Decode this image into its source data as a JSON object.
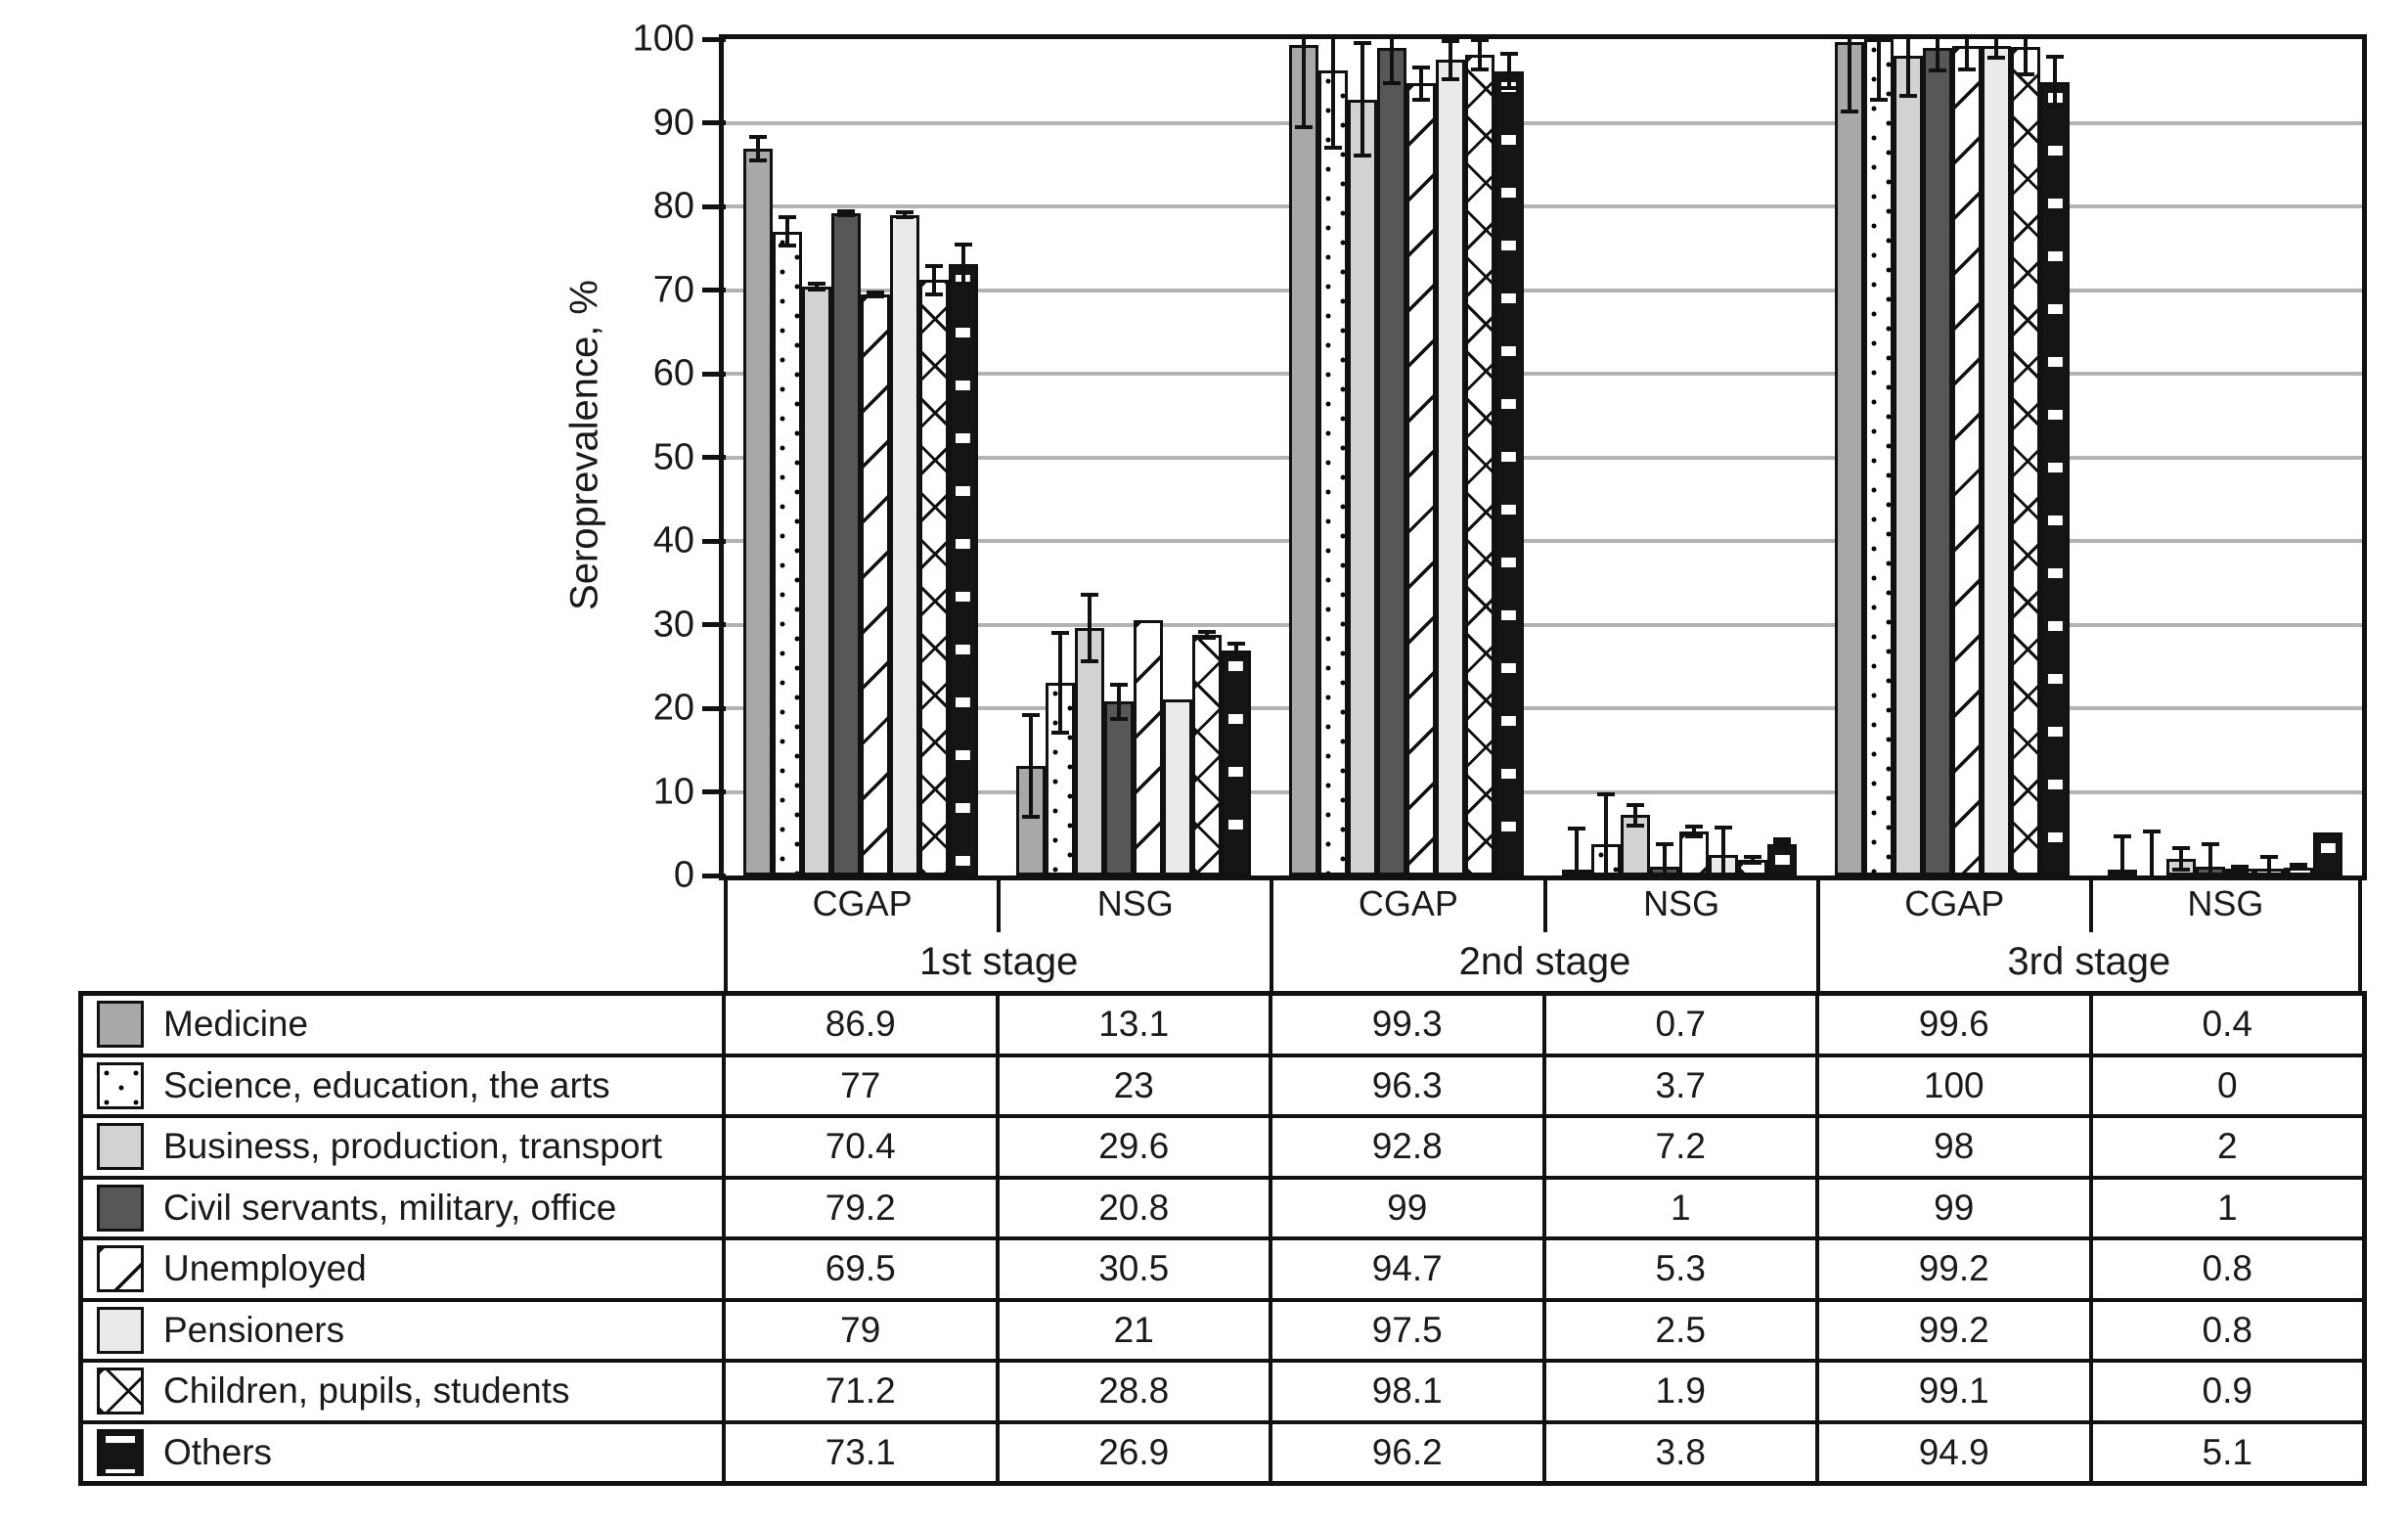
{
  "chart_data": {
    "type": "bar",
    "title": "",
    "ylabel": "Seroprevalence, %",
    "xlabel": "",
    "ylim": [
      0,
      100
    ],
    "ytick_step": 10,
    "grid": true,
    "legend_position": "table-left-column",
    "frame_color": "#111111",
    "gridline_color": "#b3b3b3",
    "group_labels": [
      "CGAP",
      "NSG",
      "CGAP",
      "NSG",
      "CGAP",
      "NSG"
    ],
    "stage_labels": [
      "1st stage",
      "2nd stage",
      "3rd stage"
    ],
    "series": [
      {
        "name": "Medicine",
        "pattern": "solid",
        "color": "#a8a8a8",
        "values": [
          86.9,
          13.1,
          99.3,
          0.7,
          99.6,
          0.4
        ],
        "errors": [
          1.6,
          6.3,
          10,
          5.2,
          8.5,
          4.5
        ]
      },
      {
        "name": "Science, education, the arts",
        "pattern": "dots",
        "color": "#ffffff",
        "values": [
          77,
          23,
          96.3,
          3.7,
          100,
          0
        ],
        "errors": [
          1.9,
          6.2,
          9.5,
          6.2,
          7.5,
          5.5
        ]
      },
      {
        "name": "Business, production, transport",
        "pattern": "solid",
        "color": "#d2d2d2",
        "values": [
          70.4,
          29.6,
          92.8,
          7.2,
          98,
          2
        ],
        "errors": [
          0.6,
          4.2,
          7,
          1.5,
          5,
          1.5
        ]
      },
      {
        "name": "Civil servants, military, office",
        "pattern": "solid",
        "color": "#575757",
        "values": [
          79.2,
          20.8,
          99,
          1,
          99,
          1
        ],
        "errors": [
          0.5,
          2.3,
          4.5,
          3,
          3,
          3
        ]
      },
      {
        "name": "Unemployed",
        "pattern": "hatch",
        "color": "#ffffff",
        "values": [
          69.5,
          30.5,
          94.7,
          5.3,
          99.2,
          0.8
        ],
        "errors": [
          0.5,
          0,
          2.2,
          0.8,
          3,
          0.5
        ]
      },
      {
        "name": "Pensioners",
        "pattern": "solid",
        "color": "#eaeaea",
        "values": [
          79,
          21,
          97.5,
          2.5,
          99.2,
          0.8
        ],
        "errors": [
          0.5,
          0,
          2.5,
          3.5,
          1.7,
          1.7
        ]
      },
      {
        "name": "Children, pupils, students",
        "pattern": "cross",
        "color": "#ffffff",
        "values": [
          71.2,
          28.8,
          98.1,
          1.9,
          99.1,
          0.9
        ],
        "errors": [
          1.9,
          0.6,
          2,
          0.6,
          3.5,
          0.3
        ]
      },
      {
        "name": "Others",
        "pattern": "dashes",
        "color": "#151515",
        "values": [
          73.1,
          26.9,
          96.2,
          3.8,
          94.9,
          5.1
        ],
        "errors": [
          2.6,
          1.1,
          2.3,
          0.2,
          3.2,
          0
        ]
      }
    ]
  }
}
